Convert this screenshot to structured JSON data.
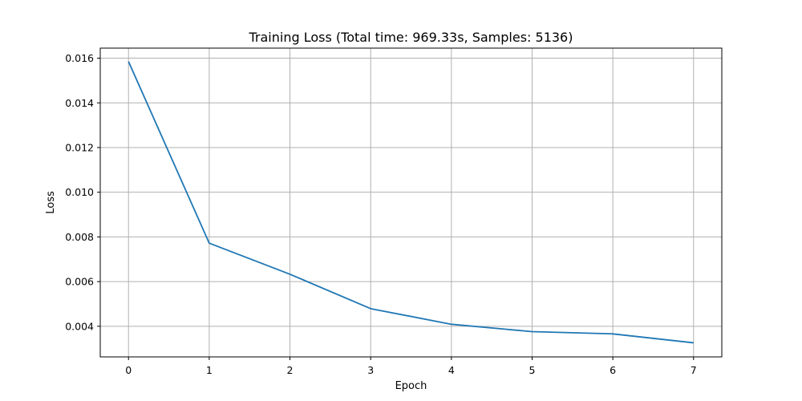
{
  "chart_data": {
    "type": "line",
    "title": "Training Loss (Total time: 969.33s, Samples: 5136)",
    "xlabel": "Epoch",
    "ylabel": "Loss",
    "x": [
      0,
      1,
      2,
      3,
      4,
      5,
      6,
      7
    ],
    "series": [
      {
        "values": [
          0.01585,
          0.00772,
          0.00633,
          0.00479,
          0.00409,
          0.00376,
          0.00366,
          0.00326
        ],
        "color": "#1f77b4"
      }
    ],
    "xlim": [
      -0.35,
      7.35
    ],
    "ylim": [
      0.00263,
      0.01645
    ],
    "xticks": [
      0,
      1,
      2,
      3,
      4,
      5,
      6,
      7
    ],
    "xtick_labels": [
      "0",
      "1",
      "2",
      "3",
      "4",
      "5",
      "6",
      "7"
    ],
    "yticks": [
      0.004,
      0.006,
      0.008,
      0.01,
      0.012,
      0.014,
      0.016
    ],
    "ytick_labels": [
      "0.004",
      "0.006",
      "0.008",
      "0.010",
      "0.012",
      "0.014",
      "0.016"
    ],
    "grid": true
  }
}
